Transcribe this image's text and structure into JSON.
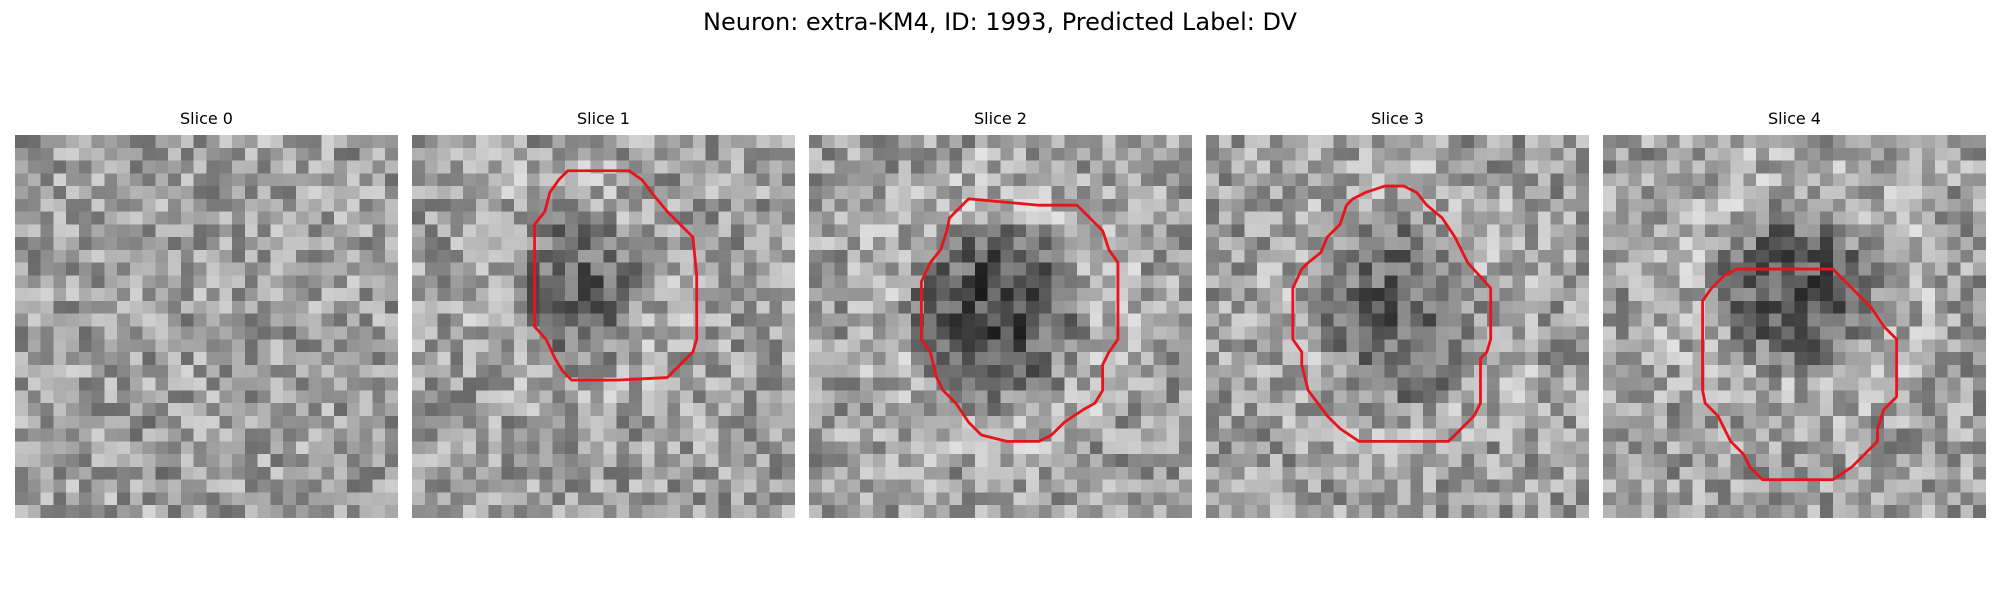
{
  "figure": {
    "title": "Neuron: extra-KM4, ID: 1993, Predicted Label: DV"
  },
  "panels": [
    {
      "title": "Slice 0",
      "has_contour": false,
      "blob_strength": 0.1
    },
    {
      "title": "Slice 1",
      "has_contour": true,
      "blob_strength": 0.55
    },
    {
      "title": "Slice 2",
      "has_contour": true,
      "blob_strength": 0.8
    },
    {
      "title": "Slice 3",
      "has_contour": true,
      "blob_strength": 0.55
    },
    {
      "title": "Slice 4",
      "has_contour": true,
      "blob_strength": 0.7
    }
  ],
  "colors": {
    "contour": "#e8141b",
    "background": "#ffffff"
  }
}
